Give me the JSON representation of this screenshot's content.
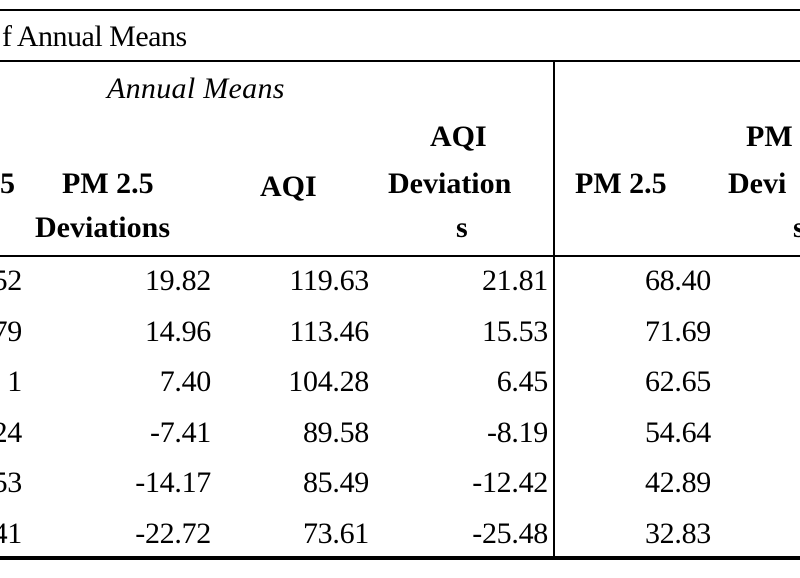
{
  "title": "f Annual Means",
  "group_header": "Annual Means",
  "headers": {
    "col0": "5",
    "col1_line1": "PM 2.5",
    "col1_line2": "Deviations",
    "col2": "AQI",
    "col3_line1": "AQI",
    "col3_line2": "Deviation",
    "col3_line3": "s",
    "col4": "PM 2.5",
    "col5_line1": "PM",
    "col5_line2": "Devi",
    "col5_line3": "s"
  },
  "rows": [
    {
      "c0": "52",
      "c1": "19.82",
      "c2": "119.63",
      "c3": "21.81",
      "c4": "68.40"
    },
    {
      "c0": "79",
      "c1": "14.96",
      "c2": "113.46",
      "c3": "15.53",
      "c4": "71.69"
    },
    {
      "c0": "1",
      "c1": "7.40",
      "c2": "104.28",
      "c3": "6.45",
      "c4": "62.65"
    },
    {
      "c0": "24",
      "c1": "-7.41",
      "c2": "89.58",
      "c3": "-8.19",
      "c4": "54.64"
    },
    {
      "c0": "53",
      "c1": "-14.17",
      "c2": "85.49",
      "c3": "-12.42",
      "c4": "42.89"
    },
    {
      "c0": "41",
      "c1": "-22.72",
      "c2": "73.61",
      "c3": "-25.48",
      "c4": "32.83"
    }
  ]
}
